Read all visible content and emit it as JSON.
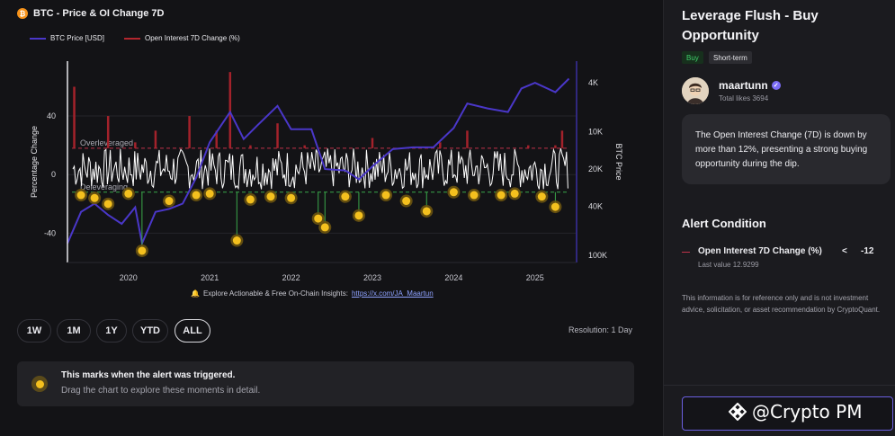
{
  "chart": {
    "title": "BTC - Price & OI Change 7D",
    "legend": [
      {
        "label": "BTC Price [USD]",
        "color": "#4a37c9"
      },
      {
        "label": "Open Interest 7D Change (%)",
        "color": "#b3262e"
      }
    ],
    "left_axis_label": "Percentage Change",
    "right_axis_label": "BTC Price",
    "left_ticks": [
      "40",
      "0",
      "-40"
    ],
    "right_ticks": [
      "100K",
      "40K",
      "20K",
      "10K",
      "4K"
    ],
    "x_ticks": [
      "2020",
      "2021",
      "2022",
      "2023",
      "2024",
      "2025"
    ],
    "annotations": {
      "overleveraged": "Overleveraged",
      "deleveraging": "Deleveraging"
    },
    "insight_text": "Explore Actionable & Free On-Chain Insights:",
    "insight_link": "https://x.com/JA_Maartun"
  },
  "chart_data": {
    "type": "line",
    "x_range": [
      "2019-04",
      "2025-06"
    ],
    "y_left_range": [
      -60,
      75
    ],
    "y_right_scale": "log",
    "y_right_ticks": [
      4000,
      10000,
      20000,
      40000,
      100000
    ],
    "thresholds": {
      "overleveraged": 18,
      "deleveraging": -12
    },
    "series": [
      {
        "name": "BTC Price [USD]",
        "axis": "right",
        "x": [
          "2019-04",
          "2019-06",
          "2019-08",
          "2019-10",
          "2019-12",
          "2020-02",
          "2020-03",
          "2020-05",
          "2020-07",
          "2020-09",
          "2020-11",
          "2021-01",
          "2021-04",
          "2021-06",
          "2021-08",
          "2021-11",
          "2022-01",
          "2022-04",
          "2022-06",
          "2022-09",
          "2022-11",
          "2023-01",
          "2023-04",
          "2023-07",
          "2023-10",
          "2024-01",
          "2024-03",
          "2024-06",
          "2024-09",
          "2024-11",
          "2025-01",
          "2025-04",
          "2025-06"
        ],
        "values": [
          5000,
          9000,
          10500,
          8500,
          7200,
          9800,
          5000,
          9000,
          9500,
          10500,
          17000,
          33000,
          58000,
          35000,
          45000,
          65000,
          42000,
          42000,
          20000,
          19500,
          16500,
          21000,
          29000,
          30000,
          30000,
          43000,
          68000,
          62000,
          58000,
          90000,
          100000,
          84000,
          108000
        ]
      },
      {
        "name": "Open Interest 7D Change (%)",
        "axis": "left",
        "x": [
          "2019-05",
          "2019-06",
          "2019-08",
          "2019-10",
          "2019-12",
          "2020-02",
          "2020-03",
          "2020-05",
          "2020-07",
          "2020-10",
          "2020-12",
          "2021-02",
          "2021-04",
          "2021-05",
          "2021-07",
          "2021-09",
          "2021-11",
          "2022-01",
          "2022-03",
          "2022-05",
          "2022-06",
          "2022-08",
          "2022-11",
          "2023-01",
          "2023-03",
          "2023-06",
          "2023-09",
          "2023-11",
          "2024-01",
          "2024-03",
          "2024-05",
          "2024-08",
          "2024-10",
          "2024-12",
          "2025-02",
          "2025-04",
          "2025-05"
        ],
        "values": [
          60,
          10,
          -12,
          40,
          -14,
          22,
          -52,
          30,
          -10,
          40,
          -12,
          30,
          70,
          -40,
          20,
          -22,
          35,
          -15,
          20,
          -12,
          -34,
          18,
          -28,
          25,
          -10,
          18,
          -16,
          22,
          -14,
          30,
          -12,
          15,
          -15,
          20,
          -14,
          20,
          30
        ]
      }
    ],
    "triggers": [
      {
        "date": "2019-06",
        "value": -14
      },
      {
        "date": "2019-08",
        "value": -16
      },
      {
        "date": "2019-10",
        "value": -20
      },
      {
        "date": "2020-01",
        "value": -13
      },
      {
        "date": "2020-03",
        "value": -52
      },
      {
        "date": "2020-07",
        "value": -18
      },
      {
        "date": "2020-11",
        "value": -14
      },
      {
        "date": "2021-01",
        "value": -13
      },
      {
        "date": "2021-05",
        "value": -45
      },
      {
        "date": "2021-07",
        "value": -17
      },
      {
        "date": "2021-10",
        "value": -15
      },
      {
        "date": "2022-01",
        "value": -16
      },
      {
        "date": "2022-05",
        "value": -30
      },
      {
        "date": "2022-06",
        "value": -36
      },
      {
        "date": "2022-09",
        "value": -15
      },
      {
        "date": "2022-11",
        "value": -28
      },
      {
        "date": "2023-03",
        "value": -14
      },
      {
        "date": "2023-06",
        "value": -18
      },
      {
        "date": "2023-09",
        "value": -25
      },
      {
        "date": "2024-01",
        "value": -12
      },
      {
        "date": "2024-04",
        "value": -14
      },
      {
        "date": "2024-08",
        "value": -14
      },
      {
        "date": "2024-10",
        "value": -13
      },
      {
        "date": "2025-02",
        "value": -15
      },
      {
        "date": "2025-04",
        "value": -22
      }
    ]
  },
  "range_buttons": [
    {
      "label": "1W",
      "active": false
    },
    {
      "label": "1M",
      "active": false
    },
    {
      "label": "1Y",
      "active": false
    },
    {
      "label": "YTD",
      "active": false
    },
    {
      "label": "ALL",
      "active": true
    }
  ],
  "resolution": "Resolution: 1 Day",
  "info": {
    "title": "This marks when the alert was triggered.",
    "subtitle": "Drag the chart to explore these moments in detail."
  },
  "alert": {
    "title": "Leverage Flush - Buy Opportunity",
    "tags": [
      "Buy",
      "Short-term"
    ],
    "author": "maartunn",
    "likes": "Total likes 3694",
    "description": "The Open Interest Change (7D) is down by more than 12%, presenting a strong buying opportunity during the dip.",
    "condition_title": "Alert Condition",
    "condition_metric": "Open Interest 7D Change (%)",
    "condition_operator": "<",
    "condition_value": "-12",
    "last_value": "Last value 12.9299",
    "disclaimer": "This information is for reference only and is not investment advice, solicitation, or asset recommendation by CryptoQuant."
  },
  "watermark": "@Crypto PM",
  "colors": {
    "price": "#4a37c9",
    "oi": "#b3262e",
    "trigger": "#f4c01e",
    "accent": "#6b5fe0"
  }
}
